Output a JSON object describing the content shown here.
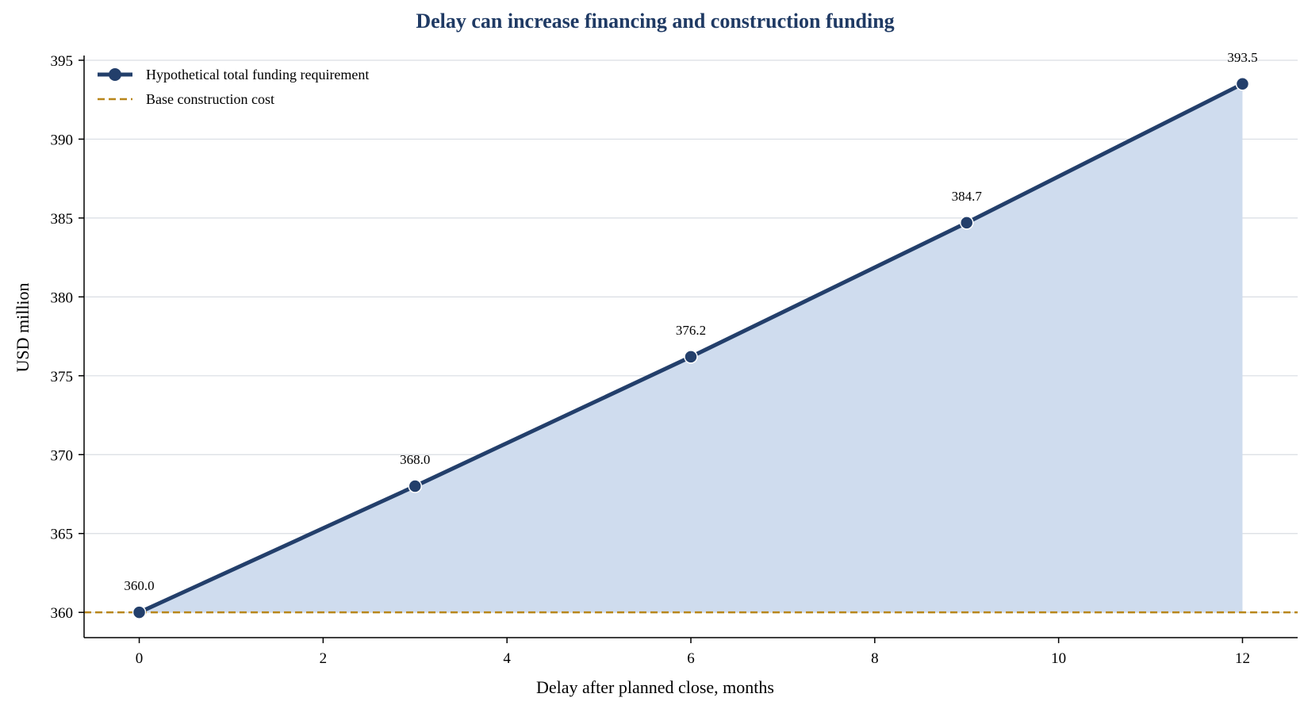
{
  "chart_data": {
    "type": "line",
    "title": "Delay can increase financing and construction funding",
    "xlabel": "Delay after planned close, months",
    "ylabel": "USD million",
    "xlim": [
      -0.6,
      12.6
    ],
    "ylim": [
      358.4,
      395.3
    ],
    "xticks": [
      0,
      2,
      4,
      6,
      8,
      10,
      12
    ],
    "yticks": [
      360,
      365,
      370,
      375,
      380,
      385,
      390,
      395
    ],
    "grid": "horizontal",
    "legend_position": "top-left",
    "series": [
      {
        "name": "Hypothetical total funding requirement",
        "x": [
          0,
          3,
          6,
          9,
          12
        ],
        "values": [
          360.0,
          368.0,
          376.2,
          384.7,
          393.5
        ],
        "labels": [
          "360.0",
          "368.0",
          "376.2",
          "384.7",
          "393.5"
        ],
        "color": "#233f6b",
        "fill_color": "#cfdcee",
        "style": "solid-with-markers"
      }
    ],
    "reference_lines": [
      {
        "name": "Base construction cost",
        "y": 360,
        "color": "#b8861a",
        "style": "dashed"
      }
    ],
    "colors": {
      "title": "#1f3a64",
      "grid": "#d9dde3",
      "axis": "#000000"
    }
  }
}
